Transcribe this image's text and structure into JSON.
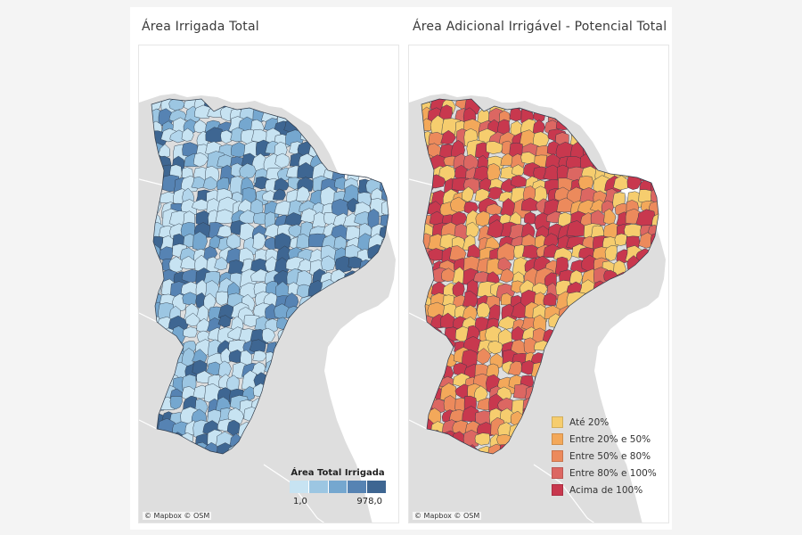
{
  "left_map": {
    "title": "Área Irrigada Total",
    "attribution": "© Mapbox © OSM",
    "legend": {
      "title": "Área Total Irrigada",
      "min_label": "1,0",
      "max_label": "978,0",
      "colors": [
        "#c7e3f2",
        "#9cc6e2",
        "#75a7cf",
        "#5683b3",
        "#3e6692"
      ]
    },
    "fill_colors": [
      "#c7e3f2",
      "#c7e3f2",
      "#c7e3f2",
      "#b3d6ec",
      "#9cc6e2",
      "#75a7cf",
      "#5683b3",
      "#3e6692"
    ]
  },
  "right_map": {
    "title": "Área Adicional Irrigável  - Potencial Total",
    "attribution": "© Mapbox © OSM",
    "legend": {
      "items": [
        {
          "label": "Até 20%",
          "color": "#f6cd6e"
        },
        {
          "label": "Entre 20% e 50%",
          "color": "#f3a85a"
        },
        {
          "label": "Entre 50% e 80%",
          "color": "#ec8a5c"
        },
        {
          "label": "Entre 80% e 100%",
          "color": "#dc6762"
        },
        {
          "label": "Acima de 100%",
          "color": "#c8384e"
        }
      ]
    },
    "fill_colors": [
      "#f6cd6e",
      "#f6cd6e",
      "#f3a85a",
      "#ec8a5c",
      "#dc6762",
      "#c8384e",
      "#c8384e",
      "#c8384e"
    ]
  },
  "colors": {
    "land": "#dedede",
    "sea": "#ffffff",
    "region_border": "#2f3b4a"
  }
}
